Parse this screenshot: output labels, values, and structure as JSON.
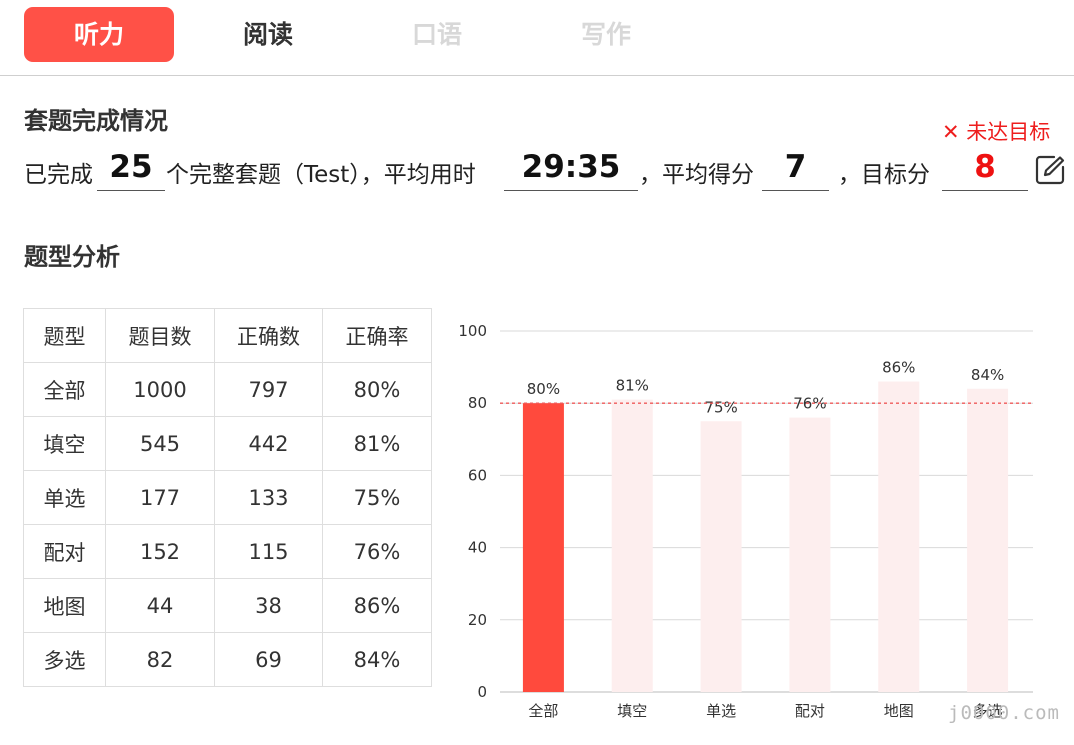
{
  "tabs": [
    {
      "label": "听力",
      "state": "active"
    },
    {
      "label": "阅读",
      "state": "normal"
    },
    {
      "label": "口语",
      "state": "disabled"
    },
    {
      "label": "写作",
      "state": "disabled"
    }
  ],
  "summary": {
    "title": "套题完成情况",
    "prefix": "已完成",
    "completed": "25",
    "mid1": "个完整套题（Test），平均用时",
    "avg_time": "29:35",
    "mid2": "，平均得分",
    "avg_score": "7",
    "mid3": "，目标分",
    "target_score": "8",
    "status": "✕ 未达目标",
    "edit_icon": "edit-pencil-icon"
  },
  "analysis": {
    "title": "题型分析",
    "columns": [
      "题型",
      "题目数",
      "正确数",
      "正确率"
    ],
    "rows": [
      [
        "全部",
        "1000",
        "797",
        "80%"
      ],
      [
        "填空",
        "545",
        "442",
        "81%"
      ],
      [
        "单选",
        "177",
        "133",
        "75%"
      ],
      [
        "配对",
        "152",
        "115",
        "76%"
      ],
      [
        "地图",
        "44",
        "38",
        "86%"
      ],
      [
        "多选",
        "82",
        "69",
        "84%"
      ]
    ]
  },
  "chart_data": {
    "type": "bar",
    "categories": [
      "全部",
      "填空",
      "单选",
      "配对",
      "地图",
      "多选"
    ],
    "values": [
      80,
      81,
      75,
      76,
      86,
      84
    ],
    "data_labels": [
      "80%",
      "81%",
      "75%",
      "76%",
      "86%",
      "84%"
    ],
    "ylim": [
      0,
      100
    ],
    "yticks": [
      0,
      20,
      40,
      60,
      80,
      100
    ],
    "reference_line": 80,
    "grid": true,
    "colors": {
      "highlight": "#ff4a3d",
      "bar": "#fdeeee",
      "reference": "#ef5a5a",
      "grid": "#d9d9d9"
    }
  },
  "watermark": "j0000.com"
}
